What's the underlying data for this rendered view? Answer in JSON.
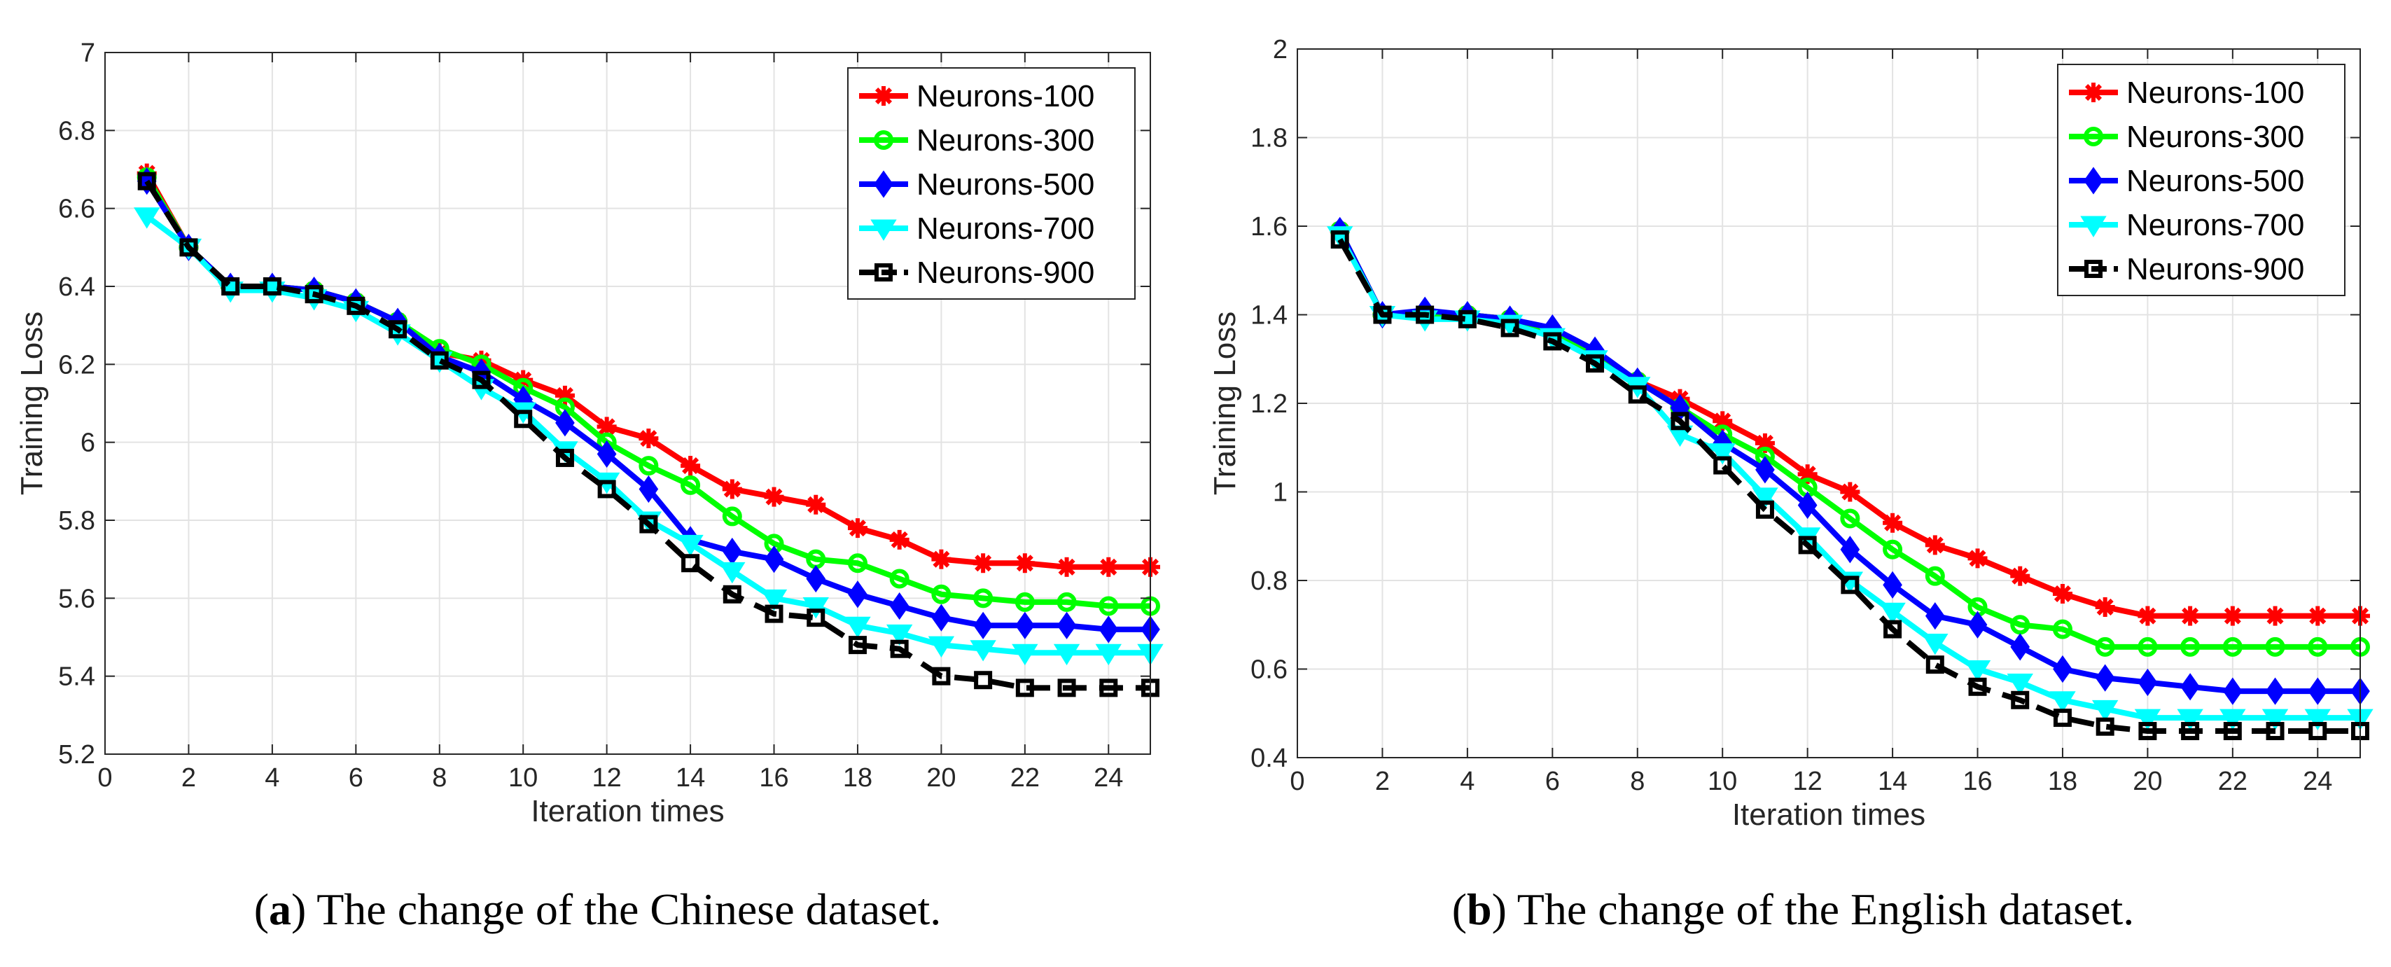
{
  "chart_data": [
    {
      "type": "line",
      "id": "a",
      "caption_letter": "a",
      "caption_text": "The change of the Chinese dataset.",
      "xlabel": "Iteration times",
      "ylabel": "Training Loss",
      "xlim": [
        0,
        25
      ],
      "ylim": [
        5.2,
        7
      ],
      "xticks": [
        0,
        2,
        4,
        6,
        8,
        10,
        12,
        14,
        16,
        18,
        20,
        22,
        24
      ],
      "yticks": [
        5.2,
        5.4,
        5.6,
        5.8,
        6,
        6.2,
        6.4,
        6.6,
        6.8,
        7
      ],
      "ytick_labels": [
        "5.2",
        "5.4",
        "5.6",
        "5.8",
        "6",
        "6.2",
        "6.4",
        "6.6",
        "6.8",
        "7"
      ],
      "grid": true,
      "legend_position": "top-right",
      "x": [
        1,
        2,
        3,
        4,
        5,
        6,
        7,
        8,
        9,
        10,
        11,
        12,
        13,
        14,
        15,
        16,
        17,
        18,
        19,
        20,
        21,
        22,
        23,
        24,
        25
      ],
      "series": [
        {
          "name": "Neurons-100",
          "color": "#ff0000",
          "marker": "asterisk",
          "values": [
            6.69,
            6.5,
            6.4,
            6.4,
            6.39,
            6.36,
            6.31,
            6.23,
            6.21,
            6.16,
            6.12,
            6.04,
            6.01,
            5.94,
            5.88,
            5.86,
            5.84,
            5.78,
            5.75,
            5.7,
            5.69,
            5.69,
            5.68,
            5.68,
            5.68
          ]
        },
        {
          "name": "Neurons-300",
          "color": "#00ff00",
          "marker": "circle",
          "values": [
            6.68,
            6.5,
            6.4,
            6.4,
            6.39,
            6.36,
            6.31,
            6.24,
            6.2,
            6.14,
            6.09,
            6.0,
            5.94,
            5.89,
            5.81,
            5.74,
            5.7,
            5.69,
            5.65,
            5.61,
            5.6,
            5.59,
            5.59,
            5.58,
            5.58
          ]
        },
        {
          "name": "Neurons-500",
          "color": "#0000ff",
          "marker": "diamond",
          "values": [
            6.67,
            6.5,
            6.4,
            6.4,
            6.39,
            6.36,
            6.31,
            6.22,
            6.18,
            6.11,
            6.05,
            5.97,
            5.88,
            5.75,
            5.72,
            5.7,
            5.65,
            5.61,
            5.58,
            5.55,
            5.53,
            5.53,
            5.53,
            5.52,
            5.52
          ]
        },
        {
          "name": "Neurons-700",
          "color": "#00ffff",
          "marker": "triangle-down",
          "values": [
            6.58,
            6.5,
            6.39,
            6.39,
            6.37,
            6.34,
            6.28,
            6.21,
            6.14,
            6.08,
            5.98,
            5.9,
            5.8,
            5.74,
            5.67,
            5.6,
            5.58,
            5.53,
            5.51,
            5.48,
            5.47,
            5.46,
            5.46,
            5.46,
            5.46
          ]
        },
        {
          "name": "Neurons-900",
          "color": "#000000",
          "marker": "square",
          "dashed": true,
          "values": [
            6.67,
            6.5,
            6.4,
            6.4,
            6.38,
            6.35,
            6.29,
            6.21,
            6.16,
            6.06,
            5.96,
            5.88,
            5.79,
            5.69,
            5.61,
            5.56,
            5.55,
            5.48,
            5.47,
            5.4,
            5.39,
            5.37,
            5.37,
            5.37,
            5.37
          ]
        }
      ]
    },
    {
      "type": "line",
      "id": "b",
      "caption_letter": "b",
      "caption_text": "The change of the English dataset.",
      "xlabel": "Iteration times",
      "ylabel": "Training Loss",
      "xlim": [
        0,
        25
      ],
      "ylim": [
        0.4,
        2
      ],
      "xticks": [
        0,
        2,
        4,
        6,
        8,
        10,
        12,
        14,
        16,
        18,
        20,
        22,
        24
      ],
      "yticks": [
        0.4,
        0.6,
        0.8,
        1,
        1.2,
        1.4,
        1.6,
        1.8,
        2
      ],
      "ytick_labels": [
        "0.4",
        "0.6",
        "0.8",
        "1",
        "1.2",
        "1.4",
        "1.6",
        "1.8",
        "2"
      ],
      "grid": true,
      "legend_position": "top-right",
      "x": [
        1,
        2,
        3,
        4,
        5,
        6,
        7,
        8,
        9,
        10,
        11,
        12,
        13,
        14,
        15,
        16,
        17,
        18,
        19,
        20,
        21,
        22,
        23,
        24,
        25
      ],
      "series": [
        {
          "name": "Neurons-100",
          "color": "#ff0000",
          "marker": "asterisk",
          "values": [
            1.59,
            1.4,
            1.4,
            1.4,
            1.39,
            1.36,
            1.31,
            1.25,
            1.21,
            1.16,
            1.11,
            1.04,
            1.0,
            0.93,
            0.88,
            0.85,
            0.81,
            0.77,
            0.74,
            0.72,
            0.72,
            0.72,
            0.72,
            0.72,
            0.72
          ]
        },
        {
          "name": "Neurons-300",
          "color": "#00ff00",
          "marker": "circle",
          "values": [
            1.59,
            1.4,
            1.4,
            1.4,
            1.39,
            1.36,
            1.31,
            1.25,
            1.19,
            1.13,
            1.08,
            1.01,
            0.94,
            0.87,
            0.81,
            0.74,
            0.7,
            0.69,
            0.65,
            0.65,
            0.65,
            0.65,
            0.65,
            0.65,
            0.65
          ]
        },
        {
          "name": "Neurons-500",
          "color": "#0000ff",
          "marker": "diamond",
          "values": [
            1.59,
            1.4,
            1.41,
            1.4,
            1.39,
            1.37,
            1.32,
            1.25,
            1.19,
            1.11,
            1.05,
            0.97,
            0.87,
            0.79,
            0.72,
            0.7,
            0.65,
            0.6,
            0.58,
            0.57,
            0.56,
            0.55,
            0.55,
            0.55,
            0.55
          ]
        },
        {
          "name": "Neurons-700",
          "color": "#00ffff",
          "marker": "triangle-down",
          "values": [
            1.58,
            1.4,
            1.39,
            1.39,
            1.38,
            1.35,
            1.3,
            1.24,
            1.13,
            1.09,
            0.99,
            0.9,
            0.8,
            0.73,
            0.66,
            0.6,
            0.57,
            0.53,
            0.51,
            0.49,
            0.49,
            0.49,
            0.49,
            0.49,
            0.49
          ]
        },
        {
          "name": "Neurons-900",
          "color": "#000000",
          "marker": "square",
          "dashed": true,
          "values": [
            1.57,
            1.4,
            1.4,
            1.39,
            1.37,
            1.34,
            1.29,
            1.22,
            1.16,
            1.06,
            0.96,
            0.88,
            0.79,
            0.69,
            0.61,
            0.56,
            0.53,
            0.49,
            0.47,
            0.46,
            0.46,
            0.46,
            0.46,
            0.46,
            0.46
          ]
        }
      ]
    }
  ]
}
